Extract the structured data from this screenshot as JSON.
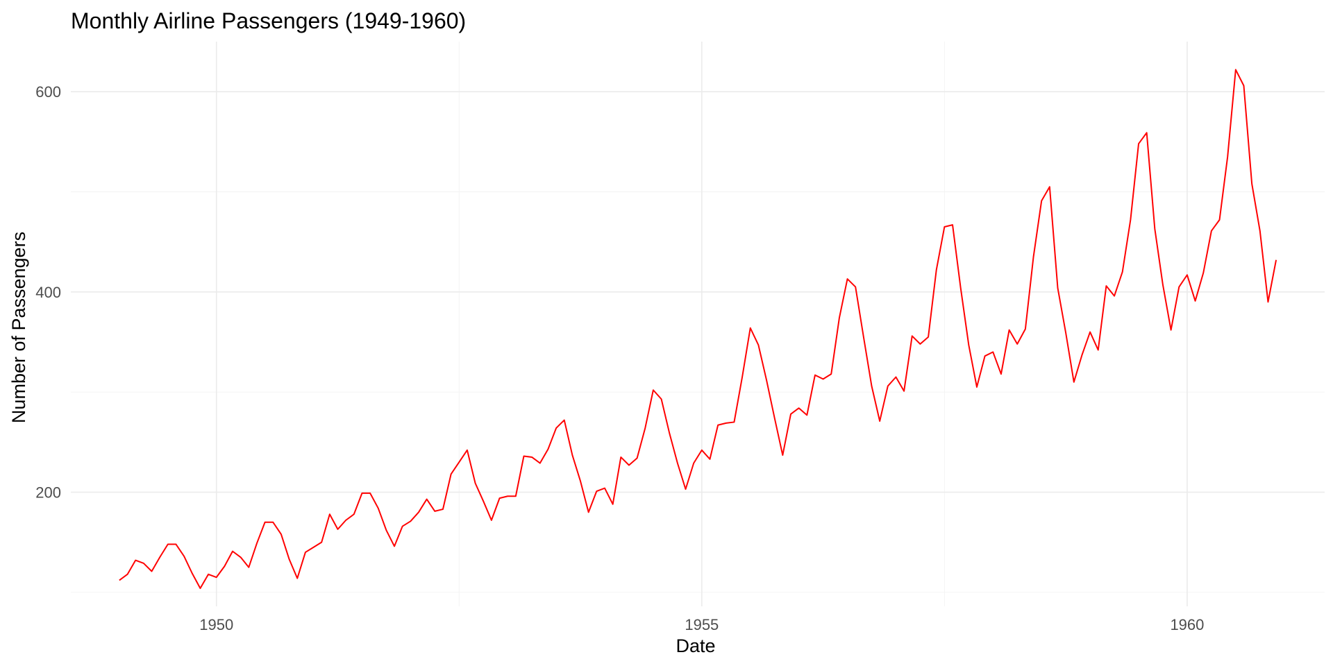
{
  "chart_data": {
    "type": "line",
    "title": "Monthly Airline Passengers (1949-1960)",
    "xlabel": "Date",
    "ylabel": "Number of Passengers",
    "x_axis": {
      "type": "date",
      "range": [
        "1948-07-01",
        "1961-06-01"
      ],
      "major_ticks": [
        "1950-01-01",
        "1955-01-01",
        "1960-01-01"
      ],
      "tick_labels": [
        "1950",
        "1955",
        "1960"
      ],
      "minor_ticks": [
        "1952-07-01",
        "1957-07-01"
      ]
    },
    "y_axis": {
      "range": [
        86,
        650
      ],
      "major_ticks": [
        200,
        400,
        600
      ],
      "tick_labels": [
        "200",
        "400",
        "600"
      ],
      "minor_ticks": [
        100,
        300,
        500
      ]
    },
    "grid": true,
    "legend": "none",
    "series": [
      {
        "color": "#ff0000",
        "x_start": "1949-01",
        "x_step": "month",
        "values": [
          112,
          118,
          132,
          129,
          121,
          135,
          148,
          148,
          136,
          119,
          104,
          118,
          115,
          126,
          141,
          135,
          125,
          149,
          170,
          170,
          158,
          133,
          114,
          140,
          145,
          150,
          178,
          163,
          172,
          178,
          199,
          199,
          184,
          162,
          146,
          166,
          171,
          180,
          193,
          181,
          183,
          218,
          230,
          242,
          209,
          191,
          172,
          194,
          196,
          196,
          236,
          235,
          229,
          243,
          264,
          272,
          237,
          211,
          180,
          201,
          204,
          188,
          235,
          227,
          234,
          264,
          302,
          293,
          259,
          229,
          203,
          229,
          242,
          233,
          267,
          269,
          270,
          315,
          364,
          347,
          312,
          274,
          237,
          278,
          284,
          277,
          317,
          313,
          318,
          374,
          413,
          405,
          355,
          306,
          271,
          306,
          315,
          301,
          356,
          348,
          355,
          422,
          465,
          467,
          404,
          347,
          305,
          336,
          340,
          318,
          362,
          348,
          363,
          435,
          491,
          505,
          404,
          359,
          310,
          337,
          360,
          342,
          406,
          396,
          420,
          472,
          548,
          559,
          463,
          407,
          362,
          405,
          417,
          391,
          419,
          461,
          472,
          535,
          622,
          606,
          508,
          461,
          390,
          432
        ]
      }
    ]
  },
  "colors": {
    "line": "#ff0000",
    "grid_major": "#ebebeb",
    "grid_minor": "#f3f3f3",
    "tick_text": "#4d4d4d",
    "background": "#ffffff"
  }
}
